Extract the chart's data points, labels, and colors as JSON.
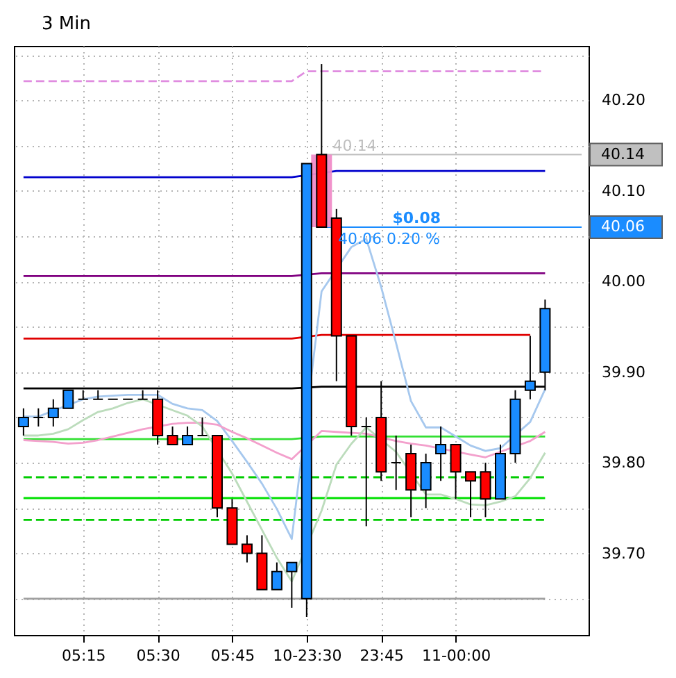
{
  "chart_data": {
    "type": "candlestick",
    "title": "3 Min",
    "categories": [
      null,
      null,
      null,
      null,
      "05:15",
      null,
      null,
      null,
      null,
      "05:30",
      null,
      null,
      null,
      null,
      "05:45",
      null,
      null,
      null,
      null,
      "10-23:30",
      null,
      null,
      null,
      null,
      "23:45",
      null,
      null,
      null,
      null,
      "11-00:00",
      null,
      null,
      null,
      null,
      null,
      null
    ],
    "ohlc": [
      [
        39.84,
        39.86,
        39.83,
        39.85
      ],
      [
        39.85,
        39.86,
        39.84,
        39.85
      ],
      [
        39.85,
        39.87,
        39.84,
        39.86
      ],
      [
        39.86,
        39.88,
        39.86,
        39.88
      ],
      [
        39.87,
        39.88,
        39.87,
        39.87
      ],
      [
        39.87,
        39.88,
        39.87,
        39.87
      ],
      [
        39.87,
        39.87,
        39.87,
        39.87
      ],
      [
        39.87,
        39.87,
        39.87,
        39.87
      ],
      [
        39.87,
        39.88,
        39.87,
        39.87
      ],
      [
        39.87,
        39.88,
        39.82,
        39.83
      ],
      [
        39.83,
        39.84,
        39.82,
        39.82
      ],
      [
        39.82,
        39.84,
        39.82,
        39.83
      ],
      [
        39.83,
        39.85,
        39.83,
        39.83
      ],
      [
        39.83,
        39.83,
        39.74,
        39.75
      ],
      [
        39.75,
        39.76,
        39.71,
        39.71
      ],
      [
        39.71,
        39.72,
        39.69,
        39.7
      ],
      [
        39.7,
        39.72,
        39.66,
        39.66
      ],
      [
        39.66,
        39.69,
        39.66,
        39.68
      ],
      [
        39.68,
        39.69,
        39.64,
        39.69
      ],
      [
        39.65,
        40.13,
        39.63,
        40.13
      ],
      [
        40.14,
        40.24,
        40.06,
        40.06
      ],
      [
        40.07,
        40.08,
        39.89,
        39.94
      ],
      [
        39.94,
        39.94,
        39.83,
        39.84
      ],
      [
        39.84,
        39.85,
        39.73,
        39.84
      ],
      [
        39.85,
        39.89,
        39.78,
        39.79
      ],
      [
        39.8,
        39.83,
        39.77,
        39.8
      ],
      [
        39.81,
        39.82,
        39.74,
        39.77
      ],
      [
        39.77,
        39.81,
        39.75,
        39.8
      ],
      [
        39.81,
        39.84,
        39.78,
        39.82
      ],
      [
        39.82,
        39.82,
        39.76,
        39.79
      ],
      [
        39.79,
        39.79,
        39.74,
        39.78
      ],
      [
        39.79,
        39.8,
        39.74,
        39.76
      ],
      [
        39.76,
        39.82,
        39.76,
        39.81
      ],
      [
        39.81,
        39.88,
        39.8,
        39.87
      ],
      [
        39.88,
        39.94,
        39.87,
        39.89
      ],
      [
        39.9,
        39.98,
        39.88,
        39.97
      ]
    ],
    "colors": [
      "#1a8cff",
      "#000000",
      "#1a8cff",
      "#1a8cff",
      "#000000",
      "#000000",
      "#000000",
      "#000000",
      "#000000",
      "#ff0000",
      "#ff0000",
      "#1a8cff",
      "#000000",
      "#ff0000",
      "#ff0000",
      "#ff0000",
      "#ff0000",
      "#1a8cff",
      "#1a8cff",
      "#1a8cff",
      "#ff0000",
      "#ff0000",
      "#ff0000",
      "#000000",
      "#ff0000",
      "#000000",
      "#ff0000",
      "#1a8cff",
      "#1a8cff",
      "#ff0000",
      "#ff0000",
      "#ff0000",
      "#1a8cff",
      "#1a8cff",
      "#1a8cff",
      "#1a8cff"
    ],
    "ylim": [
      39.61,
      40.26
    ],
    "yticks": [
      {
        "value": 39.65,
        "label": null
      },
      {
        "value": 39.7,
        "label": "39.70"
      },
      {
        "value": 39.75,
        "label": null
      },
      {
        "value": 39.8,
        "label": "39.80"
      },
      {
        "value": 39.85,
        "label": null
      },
      {
        "value": 39.9,
        "label": "39.90"
      },
      {
        "value": 39.95,
        "label": null
      },
      {
        "value": 40.0,
        "label": "40.00"
      },
      {
        "value": 40.05,
        "label": null
      },
      {
        "value": 40.1,
        "label": "40.10"
      },
      {
        "value": 40.15,
        "label": null
      },
      {
        "value": 40.2,
        "label": "40.20"
      },
      {
        "value": 40.25,
        "label": null
      }
    ],
    "grid": true,
    "series": [
      {
        "type": "line",
        "color": "#e08ce0",
        "line_style": "dashed",
        "values": [
          40.221,
          40.221,
          40.221,
          40.221,
          40.221,
          40.221,
          40.221,
          40.221,
          40.221,
          40.221,
          40.221,
          40.221,
          40.221,
          40.221,
          40.221,
          40.221,
          40.221,
          40.221,
          40.221,
          40.232,
          40.232,
          40.232,
          40.232,
          40.232,
          40.232,
          40.232,
          40.232,
          40.232,
          40.232,
          40.232,
          40.232,
          40.232,
          40.232,
          40.232,
          40.232,
          40.232
        ]
      },
      {
        "type": "line",
        "color": "#0000cd",
        "line_style": "solid",
        "values": [
          40.115,
          40.115,
          40.115,
          40.115,
          40.115,
          40.115,
          40.115,
          40.115,
          40.115,
          40.115,
          40.115,
          40.115,
          40.115,
          40.115,
          40.115,
          40.115,
          40.115,
          40.115,
          40.115,
          null,
          null,
          40.122,
          40.122,
          40.122,
          40.122,
          40.122,
          40.122,
          40.122,
          40.122,
          40.122,
          40.122,
          40.122,
          40.122,
          40.122,
          40.122,
          40.122
        ]
      },
      {
        "type": "line",
        "color": "#800080",
        "line_style": "solid",
        "values": [
          40.006,
          40.006,
          40.006,
          40.006,
          40.006,
          40.006,
          40.006,
          40.006,
          40.006,
          40.006,
          40.006,
          40.006,
          40.006,
          40.006,
          40.006,
          40.006,
          40.006,
          40.006,
          40.006,
          null,
          40.009,
          null,
          40.009,
          40.009,
          40.009,
          40.009,
          40.009,
          40.009,
          40.009,
          40.009,
          40.009,
          40.009,
          40.009,
          40.009,
          40.009,
          40.009
        ]
      },
      {
        "type": "line",
        "color": "#e00000",
        "line_style": "solid",
        "values": [
          39.937,
          39.937,
          39.937,
          39.937,
          39.937,
          39.937,
          39.937,
          39.937,
          39.937,
          39.937,
          39.937,
          39.937,
          39.937,
          39.937,
          39.937,
          39.937,
          39.937,
          39.937,
          39.937,
          null,
          39.941,
          null,
          null,
          39.941,
          39.941,
          39.941,
          39.941,
          39.941,
          39.941,
          39.941,
          39.941,
          39.941,
          39.941,
          39.941,
          39.941,
          null
        ]
      },
      {
        "type": "line",
        "color": "#000000",
        "line_style": "solid",
        "values": [
          39.882,
          39.882,
          39.882,
          39.882,
          39.882,
          39.882,
          39.882,
          39.882,
          39.882,
          39.882,
          39.882,
          39.882,
          39.882,
          39.882,
          39.882,
          39.882,
          39.882,
          39.882,
          39.882,
          null,
          39.884,
          39.884,
          null,
          39.884,
          39.884,
          39.884,
          39.884,
          39.884,
          39.884,
          39.884,
          39.884,
          39.884,
          39.884,
          39.884,
          null,
          39.884
        ]
      },
      {
        "type": "line",
        "color": "#33e033",
        "line_style": "solid",
        "values": [
          39.826,
          39.826,
          39.826,
          39.826,
          39.826,
          39.826,
          39.826,
          39.826,
          39.826,
          39.826,
          null,
          null,
          39.826,
          null,
          39.826,
          39.826,
          39.826,
          39.826,
          39.826,
          null,
          39.829,
          39.829,
          39.829,
          39.829,
          null,
          39.829,
          39.829,
          39.829,
          39.829,
          39.829,
          39.829,
          39.829,
          39.829,
          null,
          39.829,
          39.829
        ]
      },
      {
        "type": "line",
        "color": "#00cc00",
        "line_style": "dashed",
        "values": [
          39.784,
          39.784,
          39.784,
          39.784,
          39.784,
          39.784,
          39.784,
          39.784,
          39.784,
          39.784,
          39.784,
          39.784,
          39.784,
          null,
          39.784,
          39.784,
          39.784,
          39.784,
          39.784,
          null,
          39.784,
          39.784,
          39.784,
          39.784,
          39.784,
          39.784,
          null,
          null,
          39.784,
          39.784,
          null,
          null,
          null,
          39.784,
          39.784,
          39.784
        ]
      },
      {
        "type": "line",
        "color": "#00e000",
        "line_style": "solid",
        "values": [
          39.761,
          39.761,
          39.761,
          39.761,
          39.761,
          39.761,
          39.761,
          39.761,
          39.761,
          39.761,
          39.761,
          39.761,
          39.761,
          null,
          39.761,
          39.761,
          39.761,
          39.761,
          39.761,
          null,
          39.761,
          39.761,
          39.761,
          39.761,
          39.761,
          39.761,
          39.761,
          39.761,
          39.761,
          39.761,
          39.761,
          null,
          null,
          39.761,
          39.761,
          39.761
        ]
      },
      {
        "type": "line",
        "color": "#00cc00",
        "line_style": "dashed",
        "values": [
          39.737,
          39.737,
          39.737,
          39.737,
          39.737,
          39.737,
          39.737,
          39.737,
          39.737,
          39.737,
          39.737,
          39.737,
          39.737,
          39.737,
          null,
          39.737,
          39.737,
          39.737,
          39.737,
          null,
          39.737,
          39.737,
          39.737,
          39.737,
          39.737,
          39.737,
          39.737,
          39.737,
          39.737,
          39.737,
          39.737,
          39.737,
          39.737,
          39.737,
          39.737,
          39.737
        ]
      },
      {
        "type": "line",
        "color": "#a0a0a0",
        "line_style": "solid",
        "values": [
          39.65,
          39.65,
          39.65,
          39.65,
          39.65,
          39.65,
          39.65,
          39.65,
          39.65,
          39.65,
          39.65,
          39.65,
          39.65,
          39.65,
          39.65,
          39.65,
          39.65,
          39.65,
          39.65,
          null,
          39.65,
          39.65,
          39.65,
          39.65,
          39.65,
          39.65,
          39.65,
          39.65,
          39.65,
          39.65,
          39.65,
          39.65,
          39.65,
          39.65,
          39.65,
          39.65
        ]
      },
      {
        "type": "line",
        "color": "#a6c8ee",
        "line_style": "solid",
        "values": [
          39.851,
          39.851,
          null,
          null,
          39.87,
          39.873,
          39.874,
          39.875,
          39.875,
          39.875,
          39.865,
          39.86,
          39.858,
          39.846,
          39.824,
          39.801,
          39.777,
          39.749,
          39.716,
          null,
          39.989,
          null,
          40.038,
          40.047,
          39.994,
          39.932,
          39.868,
          39.839,
          39.839,
          39.829,
          39.819,
          39.813,
          39.816,
          null,
          39.845,
          39.881
        ]
      },
      {
        "type": "line",
        "color": "#f3a0cc",
        "line_style": "solid",
        "values": [
          39.825,
          39.824,
          39.823,
          39.821,
          39.822,
          39.825,
          39.829,
          39.833,
          39.837,
          null,
          39.843,
          39.844,
          39.844,
          39.842,
          39.834,
          39.827,
          39.819,
          39.811,
          39.804,
          null,
          39.835,
          39.834,
          39.833,
          39.832,
          null,
          39.824,
          39.821,
          39.819,
          null,
          null,
          39.809,
          39.806,
          null,
          null,
          39.824,
          39.834
        ]
      },
      {
        "type": "line",
        "color": "#bcdcbc",
        "line_style": "solid",
        "values": [
          39.83,
          39.83,
          39.832,
          39.837,
          39.847,
          39.856,
          39.86,
          39.866,
          39.87,
          null,
          39.858,
          39.852,
          39.84,
          null,
          39.788,
          39.757,
          39.726,
          39.695,
          39.669,
          null,
          39.747,
          39.798,
          39.821,
          39.839,
          null,
          39.812,
          null,
          39.765,
          39.765,
          39.76,
          39.754,
          39.753,
          39.757,
          39.763,
          39.783,
          39.811
        ]
      },
      {
        "type": "bar",
        "color": "#f08cc8",
        "values": [
          null,
          null,
          null,
          null,
          null,
          null,
          null,
          null,
          null,
          null,
          null,
          null,
          null,
          null,
          null,
          null,
          null,
          null,
          null,
          null,
          0.08,
          null,
          null,
          null,
          null,
          null,
          null,
          null,
          null,
          null,
          null,
          null,
          null,
          null,
          null,
          null
        ],
        "base": [
          null,
          null,
          null,
          null,
          null,
          null,
          null,
          null,
          null,
          null,
          null,
          null,
          null,
          null,
          null,
          null,
          null,
          null,
          null,
          null,
          40.06,
          null,
          null,
          null,
          null,
          null,
          null,
          null,
          null,
          null,
          null,
          null,
          null,
          null,
          null,
          null
        ]
      }
    ],
    "ref_lines": [
      {
        "axis": "y",
        "value": 40.14,
        "label": "40.14",
        "color": "#c0c0c0"
      },
      {
        "axis": "y",
        "value": 40.06,
        "label": "40.06",
        "color": "#1a8cff"
      }
    ],
    "annotations": [
      {
        "text": "40.14",
        "y": 40.14
      },
      {
        "text": "$0.08",
        "y": 40.06
      },
      {
        "text": "40.06 0.20 %",
        "y": 40.06
      }
    ]
  }
}
